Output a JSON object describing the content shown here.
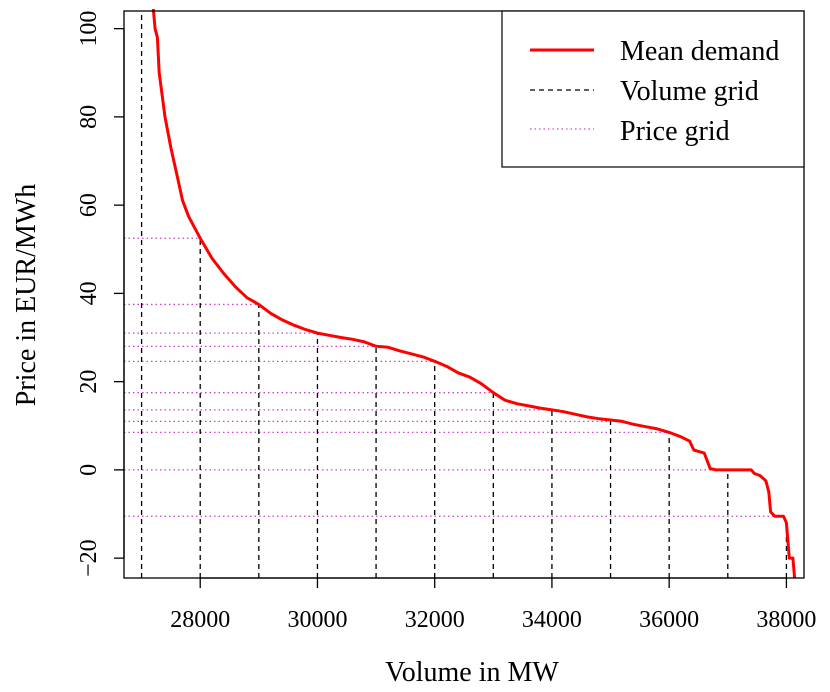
{
  "chart_data": {
    "type": "line",
    "xlabel": "Volume in MW",
    "ylabel": "Price in EUR/MWh",
    "xlim": [
      26700,
      38300
    ],
    "ylim": [
      -24.5,
      104
    ],
    "x_ticks": [
      {
        "value": 28000,
        "label": "28000"
      },
      {
        "value": 30000,
        "label": "30000"
      },
      {
        "value": 32000,
        "label": "32000"
      },
      {
        "value": 34000,
        "label": "34000"
      },
      {
        "value": 36000,
        "label": "36000"
      },
      {
        "value": 38000,
        "label": "38000"
      }
    ],
    "y_ticks": [
      {
        "value": -20,
        "label": "−20"
      },
      {
        "value": 0,
        "label": "0"
      },
      {
        "value": 20,
        "label": "20"
      },
      {
        "value": 40,
        "label": "40"
      },
      {
        "value": 60,
        "label": "60"
      },
      {
        "value": 80,
        "label": "80"
      },
      {
        "value": 100,
        "label": "100"
      }
    ],
    "grid": false,
    "legend": {
      "position": "top-right",
      "entries": [
        {
          "label": "Mean demand",
          "style": "solid",
          "color": "#ff0000"
        },
        {
          "label": "Volume grid",
          "style": "dashed",
          "color": "#000000"
        },
        {
          "label": "Price grid",
          "style": "dotted",
          "color": "#cc44cc"
        }
      ]
    },
    "series": [
      {
        "name": "Mean demand",
        "color": "#ff0000",
        "points": [
          [
            27200,
            106
          ],
          [
            27230,
            100
          ],
          [
            27270,
            98
          ],
          [
            27300,
            90
          ],
          [
            27350,
            85
          ],
          [
            27400,
            80
          ],
          [
            27500,
            73
          ],
          [
            27600,
            67
          ],
          [
            27700,
            61
          ],
          [
            27800,
            57.5
          ],
          [
            27900,
            55
          ],
          [
            28000,
            52.5
          ],
          [
            28200,
            48
          ],
          [
            28400,
            44.5
          ],
          [
            28600,
            41.5
          ],
          [
            28800,
            39
          ],
          [
            29000,
            37.5
          ],
          [
            29200,
            35.5
          ],
          [
            29400,
            34
          ],
          [
            29600,
            32.8
          ],
          [
            29800,
            31.8
          ],
          [
            30000,
            31
          ],
          [
            30200,
            30.5
          ],
          [
            30400,
            30
          ],
          [
            30600,
            29.6
          ],
          [
            30800,
            29
          ],
          [
            31000,
            28
          ],
          [
            31200,
            27.8
          ],
          [
            31400,
            27
          ],
          [
            31600,
            26.3
          ],
          [
            31800,
            25.6
          ],
          [
            32000,
            24.6
          ],
          [
            32200,
            23.5
          ],
          [
            32400,
            22
          ],
          [
            32600,
            21
          ],
          [
            32800,
            19.5
          ],
          [
            33000,
            17.5
          ],
          [
            33200,
            15.8
          ],
          [
            33400,
            15
          ],
          [
            33600,
            14.5
          ],
          [
            33800,
            14
          ],
          [
            34000,
            13.6
          ],
          [
            34200,
            13.2
          ],
          [
            34400,
            12.6
          ],
          [
            34600,
            12
          ],
          [
            34800,
            11.6
          ],
          [
            35000,
            11.3
          ],
          [
            35200,
            11
          ],
          [
            35400,
            10.3
          ],
          [
            35600,
            9.8
          ],
          [
            35800,
            9.3
          ],
          [
            36000,
            8.5
          ],
          [
            36200,
            7.5
          ],
          [
            36350,
            6.5
          ],
          [
            36420,
            4.5
          ],
          [
            36500,
            4.2
          ],
          [
            36600,
            3.8
          ],
          [
            36650,
            2
          ],
          [
            36700,
            0.3
          ],
          [
            36800,
            0
          ],
          [
            37000,
            0
          ],
          [
            37200,
            0
          ],
          [
            37400,
            0
          ],
          [
            37450,
            -0.8
          ],
          [
            37550,
            -1.3
          ],
          [
            37650,
            -2.5
          ],
          [
            37700,
            -5
          ],
          [
            37730,
            -9.5
          ],
          [
            37800,
            -10.5
          ],
          [
            37950,
            -10.5
          ],
          [
            38000,
            -12
          ],
          [
            38050,
            -20
          ],
          [
            38110,
            -20
          ],
          [
            38140,
            -24.5
          ]
        ]
      }
    ],
    "volume_grid": [
      27000,
      28000,
      29000,
      30000,
      31000,
      32000,
      33000,
      34000,
      35000,
      36000,
      37000,
      38000
    ],
    "price_grid": [
      52.5,
      37.5,
      31,
      28,
      24.6,
      17.5,
      13.6,
      11,
      8.5,
      0,
      -10.5
    ],
    "colors": {
      "demand": "#ff0000",
      "volume_grid": "#000000",
      "price_grid": "#cc44cc"
    }
  }
}
